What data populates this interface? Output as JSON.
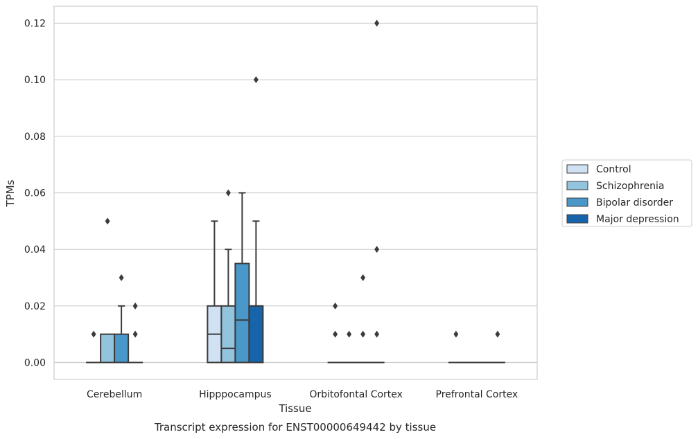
{
  "chart_data": {
    "type": "box",
    "xlabel": "Tissue",
    "ylabel": "TPMs",
    "caption": "Transcript expression for ENST00000649442 by tissue",
    "ylim": [
      -0.006,
      0.126
    ],
    "yticks": [
      0.0,
      0.02,
      0.04,
      0.06,
      0.08,
      0.1,
      0.12
    ],
    "ytick_labels": [
      "0.00",
      "0.02",
      "0.04",
      "0.06",
      "0.08",
      "0.10",
      "0.12"
    ],
    "grid": true,
    "legend_position": "right",
    "categories": [
      "Cerebellum",
      "Hipppocampus",
      "Orbitofontal Cortex",
      "Prefrontal Cortex"
    ],
    "series": [
      {
        "name": "Control",
        "color": "#cfe1f2",
        "boxes": [
          {
            "q1": 0.0,
            "median": 0.0,
            "q3": 0.0,
            "whisker_low": 0.0,
            "whisker_high": 0.0,
            "outliers": [
              0.01
            ]
          },
          {
            "q1": 0.0,
            "median": 0.01,
            "q3": 0.02,
            "whisker_low": 0.0,
            "whisker_high": 0.05,
            "outliers": []
          },
          {
            "q1": 0.0,
            "median": 0.0,
            "q3": 0.0,
            "whisker_low": 0.0,
            "whisker_high": 0.0,
            "outliers": [
              0.01,
              0.02
            ]
          },
          {
            "q1": 0.0,
            "median": 0.0,
            "q3": 0.0,
            "whisker_low": 0.0,
            "whisker_high": 0.0,
            "outliers": [
              0.01
            ]
          }
        ]
      },
      {
        "name": "Schizophrenia",
        "color": "#93c4de",
        "boxes": [
          {
            "q1": 0.0,
            "median": 0.0,
            "q3": 0.01,
            "whisker_low": 0.0,
            "whisker_high": 0.01,
            "outliers": [
              0.05
            ]
          },
          {
            "q1": 0.0,
            "median": 0.005,
            "q3": 0.02,
            "whisker_low": 0.0,
            "whisker_high": 0.04,
            "outliers": [
              0.06
            ]
          },
          {
            "q1": 0.0,
            "median": 0.0,
            "q3": 0.0,
            "whisker_low": 0.0,
            "whisker_high": 0.0,
            "outliers": [
              0.01
            ]
          },
          {
            "q1": 0.0,
            "median": 0.0,
            "q3": 0.0,
            "whisker_low": 0.0,
            "whisker_high": 0.0,
            "outliers": []
          }
        ]
      },
      {
        "name": "Bipolar disorder",
        "color": "#4a98c9",
        "boxes": [
          {
            "q1": 0.0,
            "median": 0.0,
            "q3": 0.01,
            "whisker_low": 0.0,
            "whisker_high": 0.02,
            "outliers": [
              0.03
            ]
          },
          {
            "q1": 0.0,
            "median": 0.015,
            "q3": 0.035,
            "whisker_low": 0.0,
            "whisker_high": 0.06,
            "outliers": []
          },
          {
            "q1": 0.0,
            "median": 0.0,
            "q3": 0.0,
            "whisker_low": 0.0,
            "whisker_high": 0.0,
            "outliers": [
              0.01,
              0.03
            ]
          },
          {
            "q1": 0.0,
            "median": 0.0,
            "q3": 0.0,
            "whisker_low": 0.0,
            "whisker_high": 0.0,
            "outliers": []
          }
        ]
      },
      {
        "name": "Major depression",
        "color": "#1764ab",
        "boxes": [
          {
            "q1": 0.0,
            "median": 0.0,
            "q3": 0.0,
            "whisker_low": 0.0,
            "whisker_high": 0.0,
            "outliers": [
              0.01,
              0.02
            ]
          },
          {
            "q1": 0.0,
            "median": 0.02,
            "q3": 0.02,
            "whisker_low": 0.0,
            "whisker_high": 0.05,
            "outliers": [
              0.1
            ]
          },
          {
            "q1": 0.0,
            "median": 0.0,
            "q3": 0.0,
            "whisker_low": 0.0,
            "whisker_high": 0.0,
            "outliers": [
              0.01,
              0.04,
              0.12
            ]
          },
          {
            "q1": 0.0,
            "median": 0.0,
            "q3": 0.0,
            "whisker_low": 0.0,
            "whisker_high": 0.0,
            "outliers": [
              0.01
            ]
          }
        ]
      }
    ]
  }
}
